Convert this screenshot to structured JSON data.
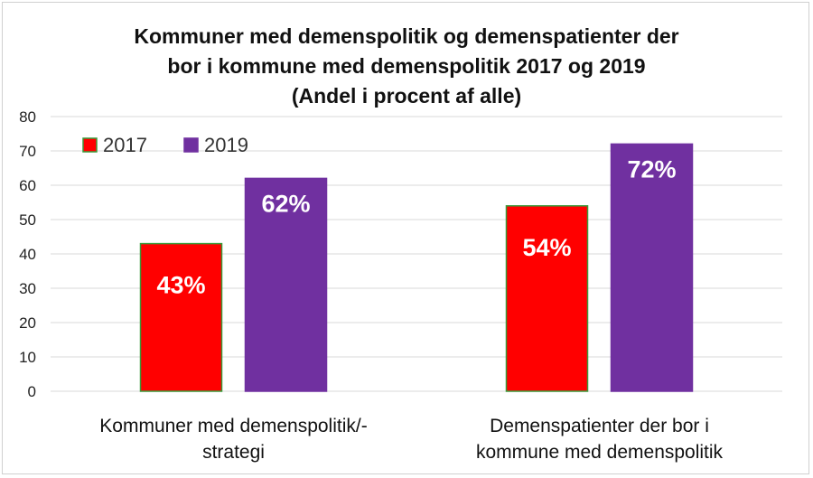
{
  "chart_data": {
    "type": "bar",
    "title_lines": [
      "Kommuner med demenspolitik og demenspatienter der",
      "bor i kommune med demenspolitik 2017 og 2019",
      "(Andel i procent af alle)"
    ],
    "categories": [
      [
        "Kommuner med demenspolitik/-",
        "strategi"
      ],
      [
        "Demenspatienter der bor i",
        "kommune med demenspolitik"
      ]
    ],
    "series": [
      {
        "name": "2017",
        "color": "#ff0000",
        "values": [
          43,
          54
        ],
        "labels": [
          "43%",
          "54%"
        ]
      },
      {
        "name": "2019",
        "color": "#7030a0",
        "values": [
          62,
          72
        ],
        "labels": [
          "62%",
          "72%"
        ]
      }
    ],
    "yticks": [
      "0",
      "10",
      "20",
      "30",
      "40",
      "50",
      "60",
      "70",
      "80"
    ],
    "ylim": [
      0,
      80
    ],
    "grid": true,
    "legend_position": "top-left"
  }
}
